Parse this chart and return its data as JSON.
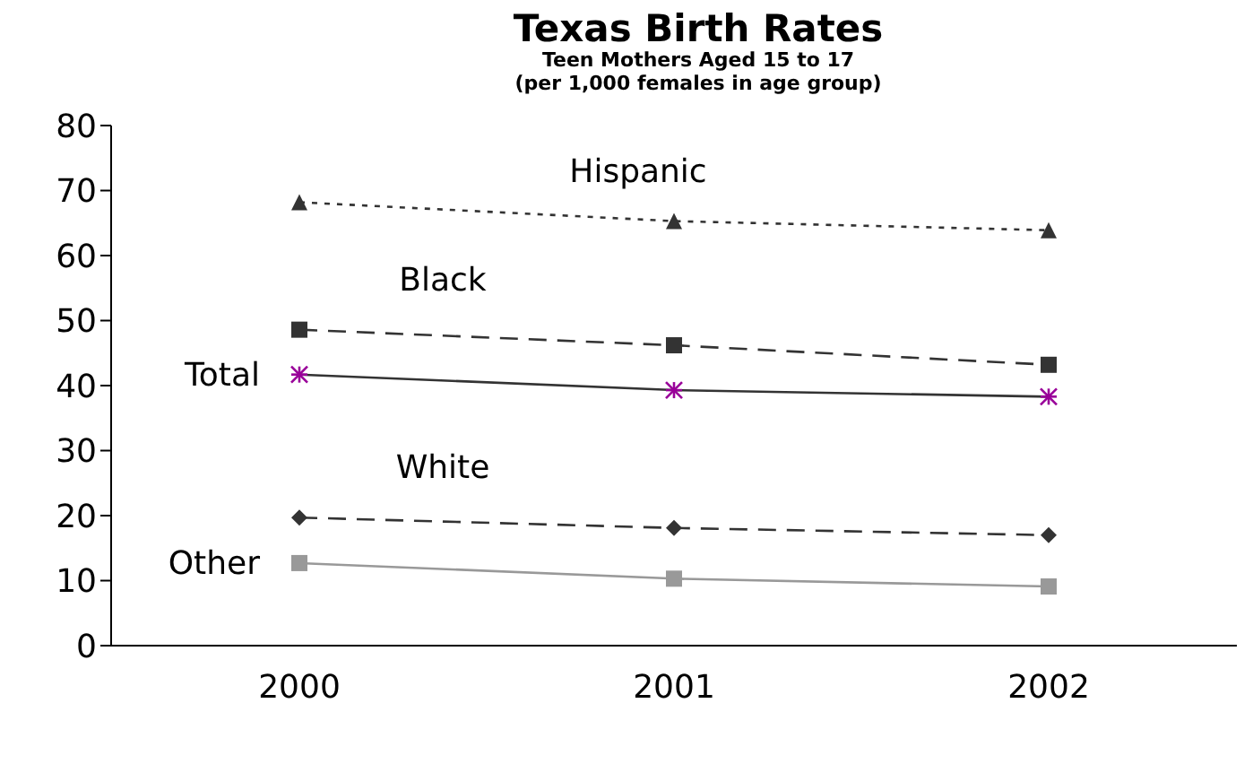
{
  "chart_data": {
    "type": "line",
    "title": "Texas Birth Rates",
    "subtitle": "Teen Mothers Aged 15 to 17\n(per 1,000 females in age group)",
    "categories": [
      "2000",
      "2001",
      "2002"
    ],
    "ylim": [
      0,
      80
    ],
    "yticks": [
      0,
      10,
      20,
      30,
      40,
      50,
      60,
      70,
      80
    ],
    "grid": false,
    "legend": false,
    "series": [
      {
        "name": "Hispanic",
        "color": "#333333",
        "marker": "triangle",
        "line_style": "dotted",
        "values": [
          68.2,
          65.3,
          63.9
        ]
      },
      {
        "name": "Black",
        "color": "#333333",
        "marker": "square",
        "line_style": "dashed",
        "values": [
          48.6,
          46.2,
          43.2
        ]
      },
      {
        "name": "Total",
        "color": "#333333",
        "colors": [
          "#990099",
          "#990099",
          "#990099"
        ],
        "marker": "cross",
        "line_style": "solid",
        "values": [
          41.7,
          39.3,
          38.3
        ]
      },
      {
        "name": "White",
        "color": "#333333",
        "marker": "diamond",
        "line_style": "dashed",
        "values": [
          19.7,
          18.1,
          17.0
        ]
      },
      {
        "name": "Other",
        "color": "#999999",
        "marker": "square",
        "line_style": "solid",
        "values": [
          12.7,
          10.3,
          9.1
        ]
      }
    ]
  }
}
